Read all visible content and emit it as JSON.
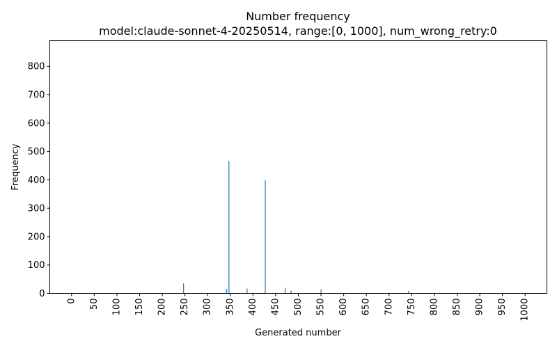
{
  "chart_data": {
    "type": "bar",
    "title": "Number frequency",
    "subtitle": "model:claude-sonnet-4-20250514, range:[0, 1000], num_wrong_retry:0",
    "xlabel": "Generated number",
    "ylabel": "Frequency",
    "xlim": [
      -48,
      1048
    ],
    "ylim": [
      0,
      890
    ],
    "x_ticks": [
      0,
      50,
      100,
      150,
      200,
      250,
      300,
      350,
      400,
      450,
      500,
      550,
      600,
      650,
      700,
      750,
      800,
      850,
      900,
      950,
      1000
    ],
    "y_ticks": [
      0,
      100,
      200,
      300,
      400,
      500,
      600,
      700,
      800
    ],
    "grid": false,
    "bar_color": "#1f77b4",
    "x": [
      247,
      342,
      347,
      387,
      427,
      471,
      484,
      550,
      743
    ],
    "values": [
      35,
      16,
      467,
      17,
      398,
      20,
      10,
      14,
      9
    ]
  }
}
